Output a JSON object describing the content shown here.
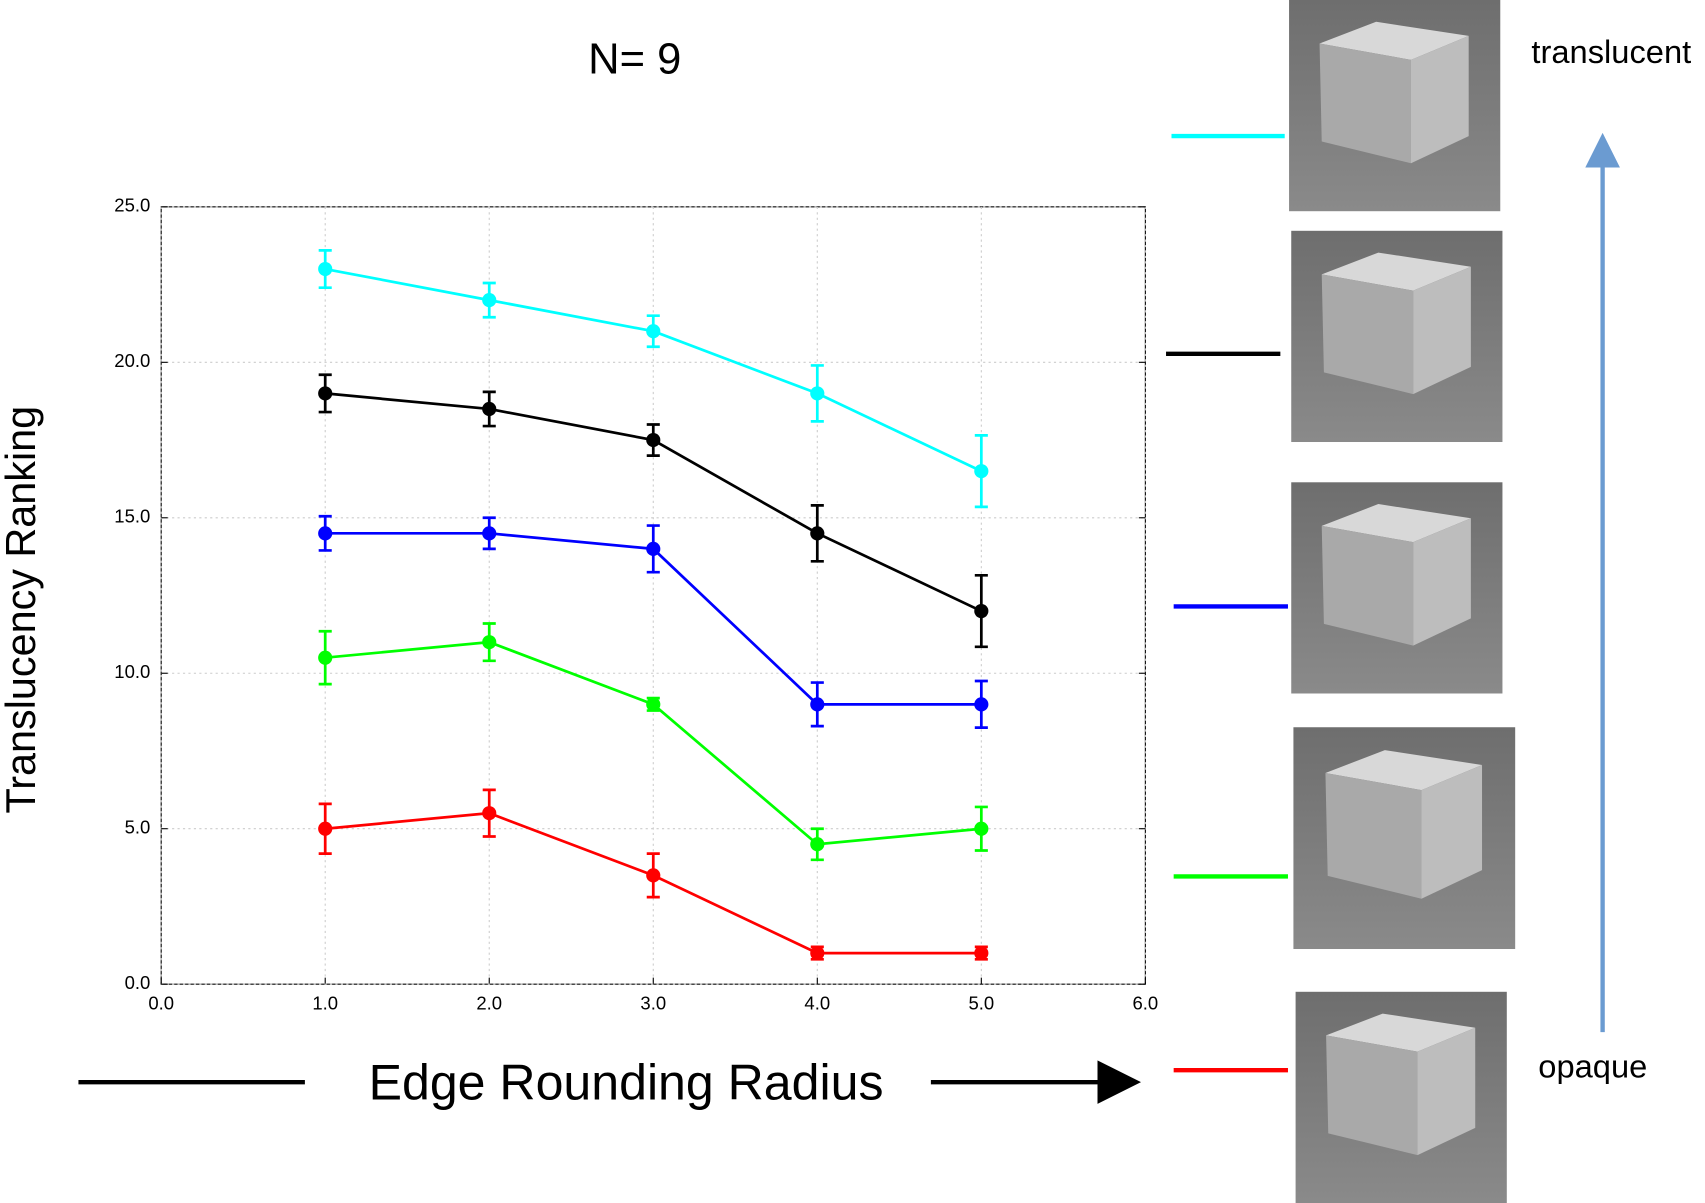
{
  "chart_data": {
    "type": "line",
    "title": "N= 9",
    "x_label": "Edge Rounding Radius",
    "y_label": "Translucency Ranking",
    "annotations": [
      "translucent",
      "opaque"
    ],
    "x": [
      1,
      2,
      3,
      4,
      5
    ],
    "xlim": [
      0,
      6
    ],
    "xticks": [
      {
        "value": 0,
        "label": "0.0"
      },
      {
        "value": 1,
        "label": "1.0"
      },
      {
        "value": 2,
        "label": "2.0"
      },
      {
        "value": 3,
        "label": "3.0"
      },
      {
        "value": 4,
        "label": "4.0"
      },
      {
        "value": 5,
        "label": "5.0"
      },
      {
        "value": 6,
        "label": "6.0"
      }
    ],
    "ylim": [
      0,
      25
    ],
    "yticks": [
      {
        "value": 0,
        "label": "0.0"
      },
      {
        "value": 5,
        "label": "5.0"
      },
      {
        "value": 10,
        "label": "10.0"
      },
      {
        "value": 15,
        "label": "15.0"
      },
      {
        "value": 20,
        "label": "20.0"
      },
      {
        "value": 25,
        "label": "25.0"
      }
    ],
    "grid": true,
    "series": [
      {
        "color": "#00ffff",
        "values": [
          23,
          22,
          21,
          19,
          16.5
        ],
        "errors": [
          0.6,
          0.55,
          0.5,
          0.9,
          1.15
        ]
      },
      {
        "color": "#000000",
        "values": [
          19,
          18.5,
          17.5,
          14.5,
          12
        ],
        "errors": [
          0.6,
          0.55,
          0.5,
          0.9,
          1.15
        ]
      },
      {
        "color": "#0000ff",
        "values": [
          14.5,
          14.5,
          14,
          9,
          9
        ],
        "errors": [
          0.55,
          0.5,
          0.75,
          0.7,
          0.75
        ]
      },
      {
        "color": "#00ff00",
        "values": [
          10.5,
          11,
          9,
          4.5,
          5
        ],
        "errors": [
          0.85,
          0.6,
          0.2,
          0.5,
          0.7
        ]
      },
      {
        "color": "#ff0000",
        "values": [
          5,
          5.5,
          3.5,
          1,
          1
        ],
        "errors": [
          0.8,
          0.75,
          0.7,
          0.2,
          0.2
        ]
      }
    ]
  }
}
